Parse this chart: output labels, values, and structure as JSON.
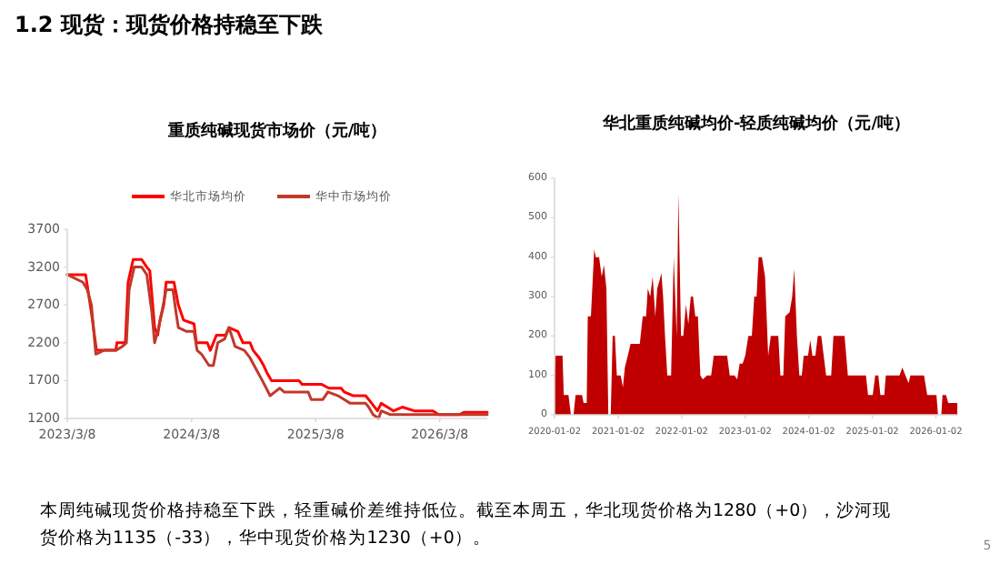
{
  "chart_data": [
    {
      "type": "line",
      "title": "重质纯碱现货市场价（元/吨）",
      "annotations": [
        "1.2 现货：现货价格持稳至下跌"
      ],
      "legend": "top",
      "grid": false,
      "xlim": [
        "2023-03-08",
        "2026-07-26"
      ],
      "xticks": [
        {
          "value": "2023-03-08",
          "label": "2023/3/8"
        },
        {
          "value": "2024-03-08",
          "label": "2024/3/8"
        },
        {
          "value": "2025-03-08",
          "label": "2025/3/8"
        },
        {
          "value": "2026-03-08",
          "label": "2026/3/8"
        }
      ],
      "ylim": [
        1200,
        3700
      ],
      "yticks": [
        1200,
        1700,
        2200,
        2700,
        3200,
        3700
      ],
      "series": [
        {
          "name": "华北市场均价",
          "color": "#ff0000",
          "x": [
            "2023-03-08",
            "2023-05-01",
            "2023-05-18",
            "2023-06-02",
            "2023-07-29",
            "2023-08-01",
            "2023-08-26",
            "2023-09-03",
            "2023-09-18",
            "2023-10-13",
            "2023-10-28",
            "2023-11-06",
            "2023-11-20",
            "2023-11-29",
            "2023-12-06",
            "2023-12-17",
            "2023-12-24",
            "2024-01-16",
            "2024-01-29",
            "2024-02-13",
            "2024-03-15",
            "2024-03-22",
            "2024-04-23",
            "2024-05-02",
            "2024-05-20",
            "2024-06-16",
            "2024-06-26",
            "2024-07-22",
            "2024-08-06",
            "2024-08-27",
            "2024-09-05",
            "2024-09-23",
            "2024-10-06",
            "2024-10-16",
            "2024-10-29",
            "2025-01-18",
            "2025-01-27",
            "2025-03-26",
            "2025-04-16",
            "2025-05-22",
            "2025-05-31",
            "2025-06-27",
            "2025-08-02",
            "2025-08-20",
            "2025-09-06",
            "2025-09-17",
            "2025-10-05",
            "2025-10-23",
            "2025-11-18",
            "2025-12-23",
            "2026-02-16",
            "2026-03-05",
            "2026-05-05",
            "2026-05-18",
            "2026-07-26"
          ],
          "values": [
            3100,
            3100,
            2600,
            2100,
            2100,
            2200,
            2200,
            3000,
            3300,
            3300,
            3200,
            3150,
            2400,
            2300,
            2500,
            2700,
            3000,
            3000,
            2700,
            2500,
            2450,
            2200,
            2200,
            2100,
            2300,
            2300,
            2400,
            2350,
            2200,
            2200,
            2100,
            2000,
            1900,
            1800,
            1700,
            1700,
            1650,
            1650,
            1600,
            1600,
            1550,
            1500,
            1500,
            1400,
            1300,
            1400,
            1350,
            1300,
            1350,
            1300,
            1300,
            1250,
            1250,
            1280,
            1280
          ]
        },
        {
          "name": "华中市场均价",
          "color": "#c0392b",
          "x": [
            "2023-03-08",
            "2023-04-23",
            "2023-05-06",
            "2023-05-18",
            "2023-05-31",
            "2023-06-24",
            "2023-07-29",
            "2023-08-17",
            "2023-08-29",
            "2023-09-06",
            "2023-09-21",
            "2023-10-13",
            "2023-10-28",
            "2023-11-12",
            "2023-11-20",
            "2023-12-02",
            "2023-12-11",
            "2023-12-24",
            "2024-01-13",
            "2024-01-22",
            "2024-01-29",
            "2024-02-22",
            "2024-03-15",
            "2024-03-24",
            "2024-04-06",
            "2024-04-28",
            "2024-05-11",
            "2024-05-24",
            "2024-06-13",
            "2024-06-26",
            "2024-07-14",
            "2024-08-10",
            "2024-08-27",
            "2024-09-14",
            "2024-10-02",
            "2024-10-25",
            "2024-11-08",
            "2024-11-22",
            "2024-12-05",
            "2025-02-14",
            "2025-02-23",
            "2025-03-29",
            "2025-04-13",
            "2025-05-13",
            "2025-05-31",
            "2025-06-18",
            "2025-08-02",
            "2025-08-11",
            "2025-08-24",
            "2025-09-09",
            "2025-09-17",
            "2025-10-14",
            "2026-07-26"
          ],
          "values": [
            3100,
            3000,
            2900,
            2700,
            2050,
            2100,
            2100,
            2150,
            2200,
            2900,
            3200,
            3200,
            3100,
            2600,
            2200,
            2400,
            2600,
            2900,
            2900,
            2600,
            2400,
            2350,
            2350,
            2100,
            2050,
            1900,
            1900,
            2200,
            2250,
            2400,
            2150,
            2100,
            2000,
            1850,
            1700,
            1500,
            1550,
            1600,
            1550,
            1550,
            1450,
            1450,
            1550,
            1500,
            1450,
            1400,
            1400,
            1350,
            1250,
            1200,
            1300,
            1250,
            1250
          ]
        }
      ]
    },
    {
      "type": "area",
      "title": "华北重质纯碱均价-轻质纯碱均价（元/吨）",
      "annotations": [
        "本周纯碱现货价格持稳至下跌，轻重碱价差维持低位。截至本周五，华北现货价格为1280（+0），沙河现货价格为1135（-33），华中现货价格为1230（+0）。",
        "5"
      ],
      "grid": false,
      "xlim": [
        "2020-01-02",
        "2026-05-10"
      ],
      "xticks": [
        {
          "value": "2020-01-02",
          "label": "2020-01-02"
        },
        {
          "value": "2021-01-02",
          "label": "2021-01-02"
        },
        {
          "value": "2022-01-02",
          "label": "2022-01-02"
        },
        {
          "value": "2023-01-02",
          "label": "2023-01-02"
        },
        {
          "value": "2024-01-02",
          "label": "2024-01-02"
        },
        {
          "value": "2025-01-02",
          "label": "2025-01-02"
        },
        {
          "value": "2026-01-02",
          "label": "2026-01-02"
        }
      ],
      "ylim": [
        0,
        600
      ],
      "yticks": [
        0,
        100,
        200,
        300,
        400,
        500,
        600
      ],
      "series": [
        {
          "color": "#c00000",
          "x": [
            "2020-01-02",
            "2020-01-08",
            "2020-02-17",
            "2020-02-24",
            "2020-03-22",
            "2020-04-05",
            "2020-04-20",
            "2020-05-02",
            "2020-06-08",
            "2020-06-17",
            "2020-07-05",
            "2020-07-11",
            "2020-07-29",
            "2020-08-17",
            "2020-08-26",
            "2020-09-14",
            "2020-09-29",
            "2020-10-12",
            "2020-10-26",
            "2020-11-06",
            "2020-11-20",
            "2020-12-01",
            "2020-12-14",
            "2020-12-25",
            "2021-01-16",
            "2021-01-29",
            "2021-02-09",
            "2021-02-26",
            "2021-03-14",
            "2021-05-06",
            "2021-05-23",
            "2021-06-11",
            "2021-06-21",
            "2021-07-05",
            "2021-07-19",
            "2021-08-03",
            "2021-08-14",
            "2021-08-27",
            "2021-09-07",
            "2021-09-17",
            "2021-09-28",
            "2021-10-11",
            "2021-11-02",
            "2021-11-17",
            "2021-12-04",
            "2021-12-14",
            "2021-12-29",
            "2022-01-11",
            "2022-01-26",
            "2022-02-09",
            "2022-02-23",
            "2022-03-08",
            "2022-03-21",
            "2022-04-05",
            "2022-04-19",
            "2022-05-03",
            "2022-05-27",
            "2022-06-20",
            "2022-07-05",
            "2022-09-20",
            "2022-10-05",
            "2022-11-02",
            "2022-11-17",
            "2022-12-01",
            "2022-12-18",
            "2023-01-02",
            "2023-01-20",
            "2023-02-09",
            "2023-02-23",
            "2023-03-08",
            "2023-03-20",
            "2023-04-08",
            "2023-04-26",
            "2023-05-14",
            "2023-05-29",
            "2023-07-11",
            "2023-07-23",
            "2023-08-09",
            "2023-08-20",
            "2023-09-14",
            "2023-09-29",
            "2023-10-11",
            "2023-10-26",
            "2023-11-09",
            "2023-11-23",
            "2023-12-04",
            "2023-12-29",
            "2024-01-11",
            "2024-01-23",
            "2024-02-09",
            "2024-02-23",
            "2024-03-14",
            "2024-03-28",
            "2024-04-11",
            "2024-05-10",
            "2024-05-23",
            "2024-07-26",
            "2024-08-14",
            "2024-11-26",
            "2024-12-08",
            "2025-01-04",
            "2025-01-18",
            "2025-02-05",
            "2025-02-17",
            "2025-03-11",
            "2025-03-20",
            "2025-06-07",
            "2025-06-23",
            "2025-07-11",
            "2025-07-29",
            "2025-08-08",
            "2025-10-26",
            "2025-11-13",
            "2026-01-05",
            "2026-01-14",
            "2026-02-02",
            "2026-02-09",
            "2026-03-01",
            "2026-03-14",
            "2026-05-05"
          ],
          "values": [
            100,
            150,
            150,
            50,
            50,
            0,
            0,
            50,
            50,
            30,
            30,
            250,
            250,
            420,
            400,
            400,
            350,
            380,
            320,
            0,
            0,
            200,
            200,
            100,
            100,
            70,
            120,
            150,
            180,
            180,
            250,
            250,
            320,
            300,
            350,
            250,
            320,
            340,
            360,
            300,
            200,
            100,
            100,
            400,
            200,
            560,
            200,
            200,
            280,
            230,
            300,
            300,
            250,
            250,
            100,
            90,
            100,
            100,
            150,
            150,
            100,
            100,
            90,
            130,
            130,
            150,
            200,
            200,
            300,
            300,
            400,
            400,
            350,
            150,
            200,
            200,
            100,
            100,
            250,
            260,
            300,
            370,
            200,
            100,
            100,
            150,
            150,
            190,
            150,
            150,
            200,
            200,
            150,
            100,
            100,
            200,
            200,
            100,
            100,
            50,
            50,
            100,
            100,
            50,
            50,
            100,
            100,
            120,
            100,
            80,
            100,
            100,
            50,
            50,
            0,
            0,
            50,
            50,
            30,
            30
          ]
        }
      ]
    }
  ]
}
